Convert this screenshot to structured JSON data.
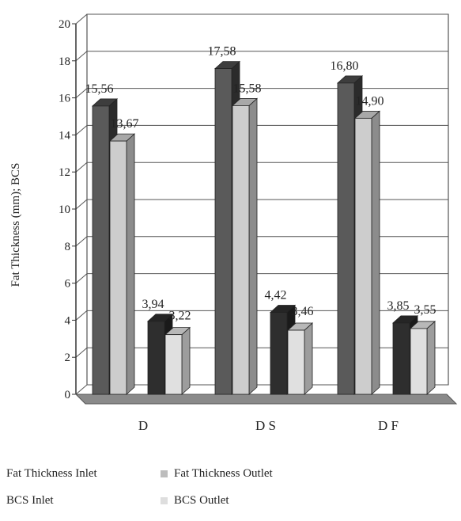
{
  "chart_data": {
    "type": "bar",
    "categories": [
      "D",
      "D S",
      "D F"
    ],
    "series": [
      {
        "name": "Fat Thickness Inlet",
        "values": [
          15.56,
          17.58,
          16.8
        ],
        "labels": [
          "15,56",
          "17,58",
          "16,80"
        ],
        "color": "#555555"
      },
      {
        "name": "Fat Thickness Outlet",
        "values": [
          13.67,
          15.58,
          14.9
        ],
        "labels": [
          "13,67",
          "15,58",
          "14,90"
        ],
        "color": "#c8c8c8"
      },
      {
        "name": "BCS Inlet",
        "values": [
          3.94,
          4.42,
          3.85
        ],
        "labels": [
          "3,94",
          "4,42",
          "3,85"
        ],
        "color": "#2f2f2f"
      },
      {
        "name": "BCS Outlet",
        "values": [
          3.22,
          3.46,
          3.55
        ],
        "labels": [
          "3,22",
          "3,46",
          "3,55"
        ],
        "color": "#dcdcdc"
      }
    ],
    "ylabel": "Fat Thickness (mm); BCS",
    "ylim": [
      0,
      20
    ],
    "yticks": [
      0,
      2,
      4,
      6,
      8,
      10,
      12,
      14,
      16,
      18,
      20
    ],
    "grid": true,
    "legend_position": "bottom"
  }
}
